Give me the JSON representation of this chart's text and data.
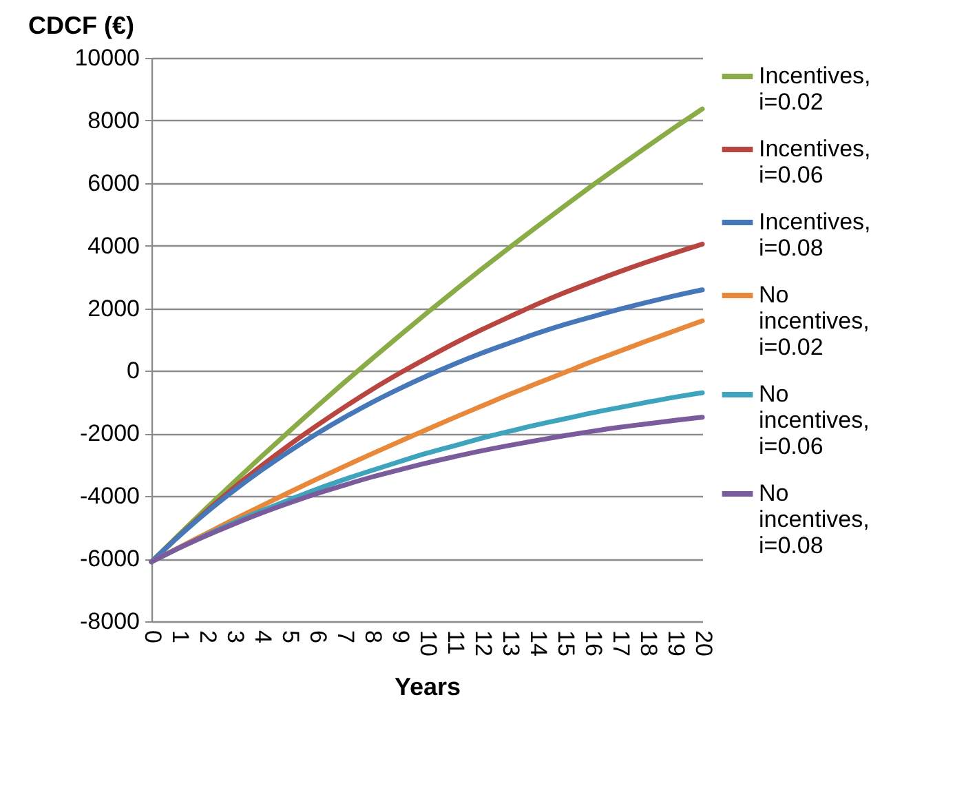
{
  "chart_data": {
    "type": "line",
    "xlabel": "Years",
    "ylabel": "CDCF (€)",
    "categories": [
      "0",
      "1",
      "2",
      "3",
      "4",
      "5",
      "6",
      "7",
      "8",
      "9",
      "10",
      "11",
      "12",
      "13",
      "14",
      "15",
      "16",
      "17",
      "18",
      "19",
      "20"
    ],
    "ylim": [
      -8000,
      10000
    ],
    "yticks": [
      -8000,
      -6000,
      -4000,
      -2000,
      0,
      2000,
      4000,
      6000,
      8000,
      10000
    ],
    "grid": "y",
    "legend": "top right",
    "marker": "none",
    "series": [
      {
        "name": "Incentives, i=0.02",
        "color": "#8aac46",
        "values": [
          -6100,
          -5230,
          -4380,
          -3550,
          -2730,
          -1930,
          -1140,
          -370,
          380,
          1120,
          1850,
          2560,
          3260,
          3940,
          4610,
          5270,
          5920,
          6550,
          7170,
          7780,
          8370
        ]
      },
      {
        "name": "Incentives, i=0.06",
        "color": "#b8453f",
        "values": [
          -6100,
          -5270,
          -4480,
          -3730,
          -3030,
          -2370,
          -1750,
          -1160,
          -600,
          -80,
          410,
          880,
          1320,
          1730,
          2130,
          2500,
          2840,
          3170,
          3480,
          3770,
          4050
        ]
      },
      {
        "name": "Incentives, i=0.08",
        "color": "#4677b8",
        "values": [
          -6100,
          -5280,
          -4520,
          -3820,
          -3170,
          -2570,
          -2010,
          -1490,
          -1010,
          -570,
          -160,
          220,
          570,
          890,
          1200,
          1480,
          1730,
          1970,
          2190,
          2400,
          2590
        ]
      },
      {
        "name": "No incentives, i=0.02",
        "color": "#e8883a",
        "values": [
          -6100,
          -5640,
          -5190,
          -4740,
          -4310,
          -3880,
          -3460,
          -3050,
          -2650,
          -2260,
          -1870,
          -1490,
          -1120,
          -750,
          -400,
          -50,
          300,
          630,
          960,
          1280,
          1600
        ]
      },
      {
        "name": "No incentives, i=0.06",
        "color": "#3ea3bd",
        "values": [
          -6100,
          -5660,
          -5240,
          -4840,
          -4470,
          -4120,
          -3780,
          -3470,
          -3180,
          -2900,
          -2630,
          -2390,
          -2150,
          -1930,
          -1720,
          -1530,
          -1340,
          -1170,
          -1000,
          -840,
          -700
        ]
      },
      {
        "name": "No incentives, i=0.08",
        "color": "#7a5c9c",
        "values": [
          -6100,
          -5660,
          -5260,
          -4890,
          -4540,
          -4220,
          -3920,
          -3650,
          -3390,
          -3160,
          -2940,
          -2740,
          -2550,
          -2380,
          -2220,
          -2070,
          -1930,
          -1800,
          -1690,
          -1580,
          -1480
        ]
      }
    ]
  }
}
